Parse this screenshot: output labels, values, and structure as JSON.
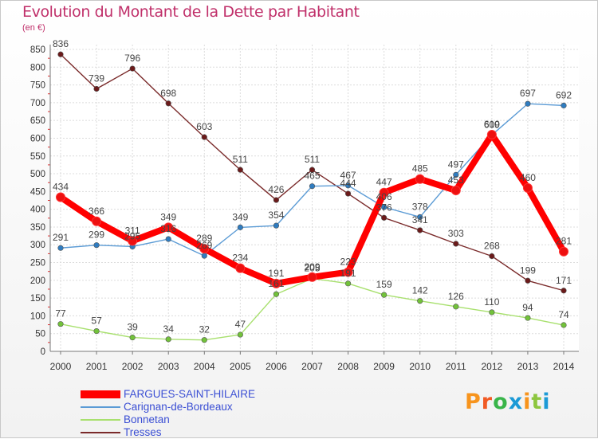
{
  "title": "Evolution du Montant de la Dette par Habitant",
  "subtitle": "(en €)",
  "logo": "Proxiti",
  "chart_data": {
    "type": "line",
    "x": [
      2000,
      2001,
      2002,
      2003,
      2004,
      2005,
      2006,
      2007,
      2008,
      2009,
      2010,
      2011,
      2012,
      2013,
      2014
    ],
    "y_ticks": [
      0,
      50,
      100,
      150,
      200,
      250,
      300,
      350,
      400,
      450,
      500,
      550,
      600,
      650,
      700,
      750,
      800,
      850
    ],
    "ylim": [
      0,
      850
    ],
    "grid": true,
    "legend_position": "bottom-left",
    "series": [
      {
        "name": "Tresses",
        "color": "#7a2a2a",
        "marker": "#6b1a1a",
        "values": [
          836,
          739,
          796,
          698,
          603,
          511,
          426,
          511,
          444,
          376,
          341,
          303,
          268,
          199,
          171
        ],
        "labels": [
          "836",
          "739",
          "796",
          "698",
          "603",
          "511",
          "426",
          "511",
          "444",
          "376",
          "341",
          "303",
          "268",
          "199",
          "171"
        ]
      },
      {
        "name": "Carignan-de-Bordeaux",
        "color": "#5b9bd5",
        "marker": "#2f7cc0",
        "values": [
          291,
          299,
          295,
          316,
          269,
          349,
          354,
          465,
          467,
          406,
          378,
          497,
          609,
          697,
          692
        ],
        "labels": [
          "291",
          "299",
          "295",
          "316",
          "269",
          "349",
          "354",
          "465",
          "467",
          "406",
          "378",
          "497",
          "609",
          "697",
          "692"
        ]
      },
      {
        "name": "Bonnetan",
        "color": "#a8e06e",
        "marker": "#72c23a",
        "values": [
          77,
          57,
          39,
          34,
          32,
          47,
          161,
          205,
          191,
          159,
          142,
          126,
          110,
          94,
          74
        ],
        "labels": [
          "77",
          "57",
          "39",
          "34",
          "32",
          "47",
          "161",
          "205",
          "191",
          "159",
          "142",
          "126",
          "110",
          "94",
          "74"
        ]
      },
      {
        "name": "FARGUES-SAINT-HILAIRE",
        "color": "#ff0000",
        "marker": "#ee1010",
        "values": [
          434,
          366,
          311,
          349,
          289,
          234,
          191,
          209,
          223,
          447,
          485,
          453,
          610,
          460,
          281
        ],
        "labels": [
          "434",
          "366",
          "311",
          "349",
          "289",
          "234",
          "191",
          "209",
          "223",
          "447",
          "485",
          "453",
          "610",
          "460",
          "281"
        ]
      }
    ]
  }
}
